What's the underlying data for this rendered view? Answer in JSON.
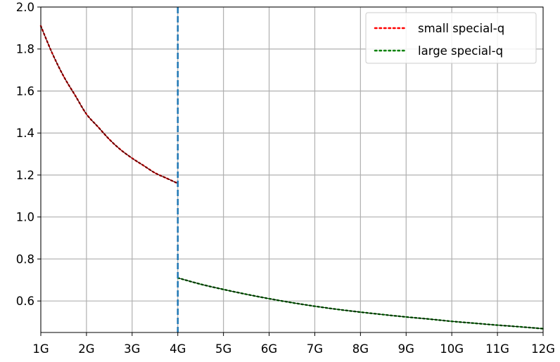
{
  "chart_data": {
    "type": "line",
    "title": "",
    "xlabel": "",
    "ylabel": "",
    "xlim": [
      1,
      12
    ],
    "ylim": [
      0.45,
      2.0
    ],
    "grid": true,
    "legend_position": "top-right",
    "x_ticks": [
      {
        "value": 1,
        "label": "1G"
      },
      {
        "value": 2,
        "label": "2G"
      },
      {
        "value": 3,
        "label": "3G"
      },
      {
        "value": 4,
        "label": "4G"
      },
      {
        "value": 5,
        "label": "5G"
      },
      {
        "value": 6,
        "label": "6G"
      },
      {
        "value": 7,
        "label": "7G"
      },
      {
        "value": 8,
        "label": "8G"
      },
      {
        "value": 9,
        "label": "9G"
      },
      {
        "value": 10,
        "label": "10G"
      },
      {
        "value": 11,
        "label": "11G"
      },
      {
        "value": 12,
        "label": "12G"
      }
    ],
    "y_ticks": [
      {
        "value": 0.6,
        "label": "0.6"
      },
      {
        "value": 0.8,
        "label": "0.8"
      },
      {
        "value": 1.0,
        "label": "1.0"
      },
      {
        "value": 1.2,
        "label": "1.2"
      },
      {
        "value": 1.4,
        "label": "1.4"
      },
      {
        "value": 1.6,
        "label": "1.6"
      },
      {
        "value": 1.8,
        "label": "1.8"
      },
      {
        "value": 2.0,
        "label": "2.0"
      }
    ],
    "series": [
      {
        "name": "small special-q",
        "color": "#ff0000",
        "style": "dotted",
        "points": [
          [
            1.0,
            1.91
          ],
          [
            1.25,
            1.78
          ],
          [
            1.5,
            1.67
          ],
          [
            1.75,
            1.58
          ],
          [
            2.0,
            1.49
          ],
          [
            2.25,
            1.43
          ],
          [
            2.5,
            1.37
          ],
          [
            2.75,
            1.32
          ],
          [
            3.0,
            1.28
          ],
          [
            3.25,
            1.245
          ],
          [
            3.5,
            1.21
          ],
          [
            3.75,
            1.185
          ],
          [
            4.0,
            1.16
          ]
        ]
      },
      {
        "name": "large special-q",
        "color": "#008000",
        "style": "dotted",
        "points": [
          [
            4.0,
            0.71
          ],
          [
            4.5,
            0.68
          ],
          [
            5.0,
            0.655
          ],
          [
            5.5,
            0.632
          ],
          [
            6.0,
            0.611
          ],
          [
            6.5,
            0.592
          ],
          [
            7.0,
            0.575
          ],
          [
            7.5,
            0.56
          ],
          [
            8.0,
            0.547
          ],
          [
            8.5,
            0.535
          ],
          [
            9.0,
            0.524
          ],
          [
            9.5,
            0.514
          ],
          [
            10.0,
            0.503
          ],
          [
            10.5,
            0.494
          ],
          [
            11.0,
            0.485
          ],
          [
            11.5,
            0.477
          ],
          [
            12.0,
            0.468
          ]
        ]
      }
    ],
    "vline": {
      "x": 4,
      "color": "#1f77b4",
      "style": "dashed"
    },
    "colors": {
      "grid": "#b0b0b0",
      "fit_line": "#000000",
      "axes": "#000000"
    }
  }
}
